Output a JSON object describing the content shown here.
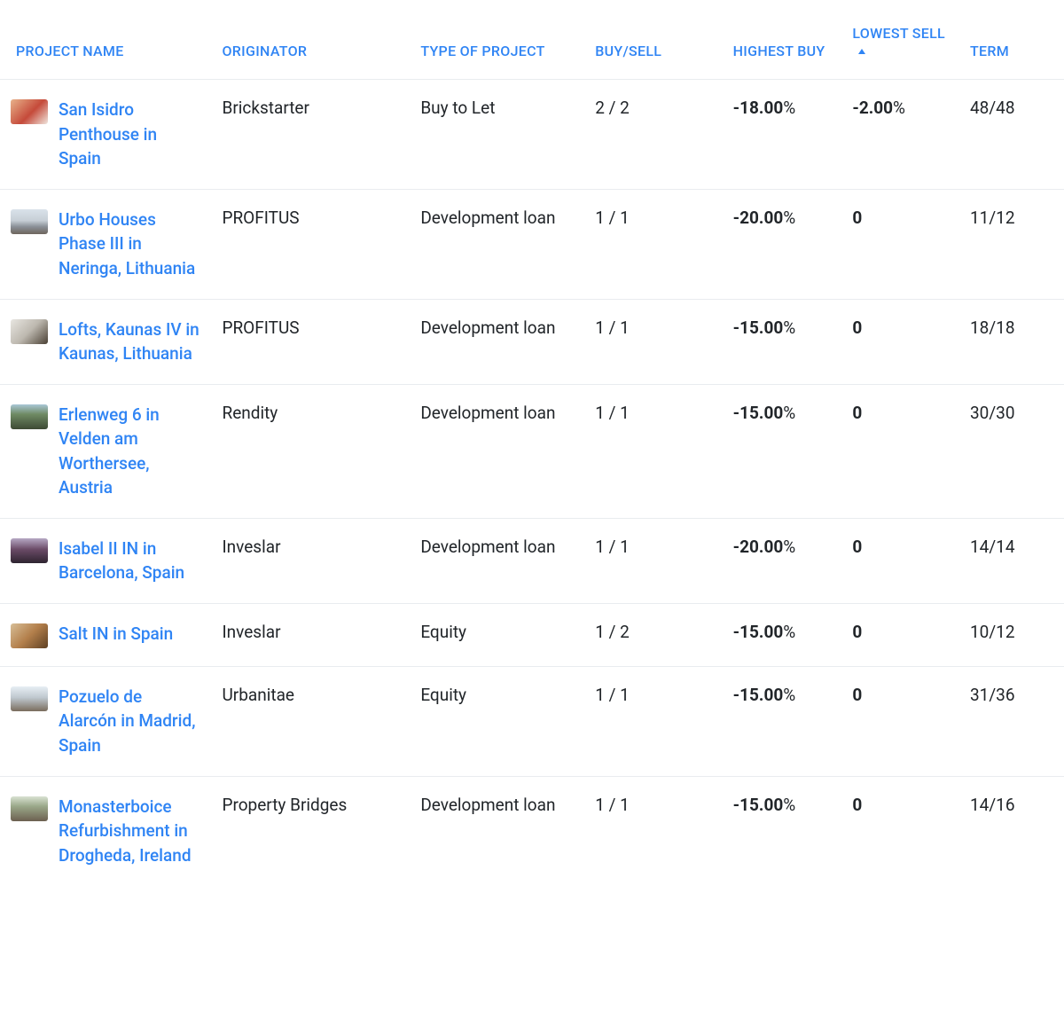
{
  "colors": {
    "link": "#2f84f4",
    "text": "#212529",
    "border": "#e9ecef",
    "background": "#ffffff"
  },
  "columns": {
    "project": "PROJECT NAME",
    "originator": "ORIGINATOR",
    "type": "TYPE OF PROJECT",
    "buysell": "BUY/SELL",
    "highest_buy": "HIGHEST BUY",
    "lowest_sell": "LOWEST SELL",
    "term": "TERM"
  },
  "sort": {
    "column": "lowest_sell",
    "direction": "asc"
  },
  "rows": [
    {
      "name": "San Isidro Penthouse in Spain",
      "originator": "Brickstarter",
      "type": "Buy to Let",
      "buysell": "2 / 2",
      "highest_buy_value": "-18.00",
      "highest_buy_suffix": "%",
      "lowest_sell_value": "-2.00",
      "lowest_sell_suffix": "%",
      "term": "48/48",
      "thumb_gradient": "linear-gradient(135deg,#e8b28a 0%,#c54a3a 55%,#f0e6de 100%)"
    },
    {
      "name": "Urbo Houses Phase III in Neringa, Lithuania",
      "originator": "PROFITUS",
      "type": "Development loan",
      "buysell": "1 / 1",
      "highest_buy_value": "-20.00",
      "highest_buy_suffix": "%",
      "lowest_sell_value": "0",
      "lowest_sell_suffix": "",
      "term": "11/12",
      "thumb_gradient": "linear-gradient(180deg,#d9e2ea 0%,#c7cfd6 45%,#8a9097 70%,#6e655c 100%)"
    },
    {
      "name": "Lofts, Kaunas IV in Kaunas, Lithuania",
      "originator": "PROFITUS",
      "type": "Development loan",
      "buysell": "1 / 1",
      "highest_buy_value": "-15.00",
      "highest_buy_suffix": "%",
      "lowest_sell_value": "0",
      "lowest_sell_suffix": "",
      "term": "18/18",
      "thumb_gradient": "linear-gradient(135deg,#e8e6e1 0%,#bdb8af 50%,#4a4034 100%)"
    },
    {
      "name": "Erlenweg 6 in Velden am Worthersee, Austria",
      "originator": "Rendity",
      "type": "Development loan",
      "buysell": "1 / 1",
      "highest_buy_value": "-15.00",
      "highest_buy_suffix": "%",
      "lowest_sell_value": "0",
      "lowest_sell_suffix": "",
      "term": "30/30",
      "thumb_gradient": "linear-gradient(180deg,#a9c7d6 0%,#6f8a63 40%,#3d4a34 100%)"
    },
    {
      "name": "Isabel II IN in Barcelona, Spain",
      "originator": "Inveslar",
      "type": "Development loan",
      "buysell": "1 / 1",
      "highest_buy_value": "-20.00",
      "highest_buy_suffix": "%",
      "lowest_sell_value": "0",
      "lowest_sell_suffix": "",
      "term": "14/14",
      "thumb_gradient": "linear-gradient(180deg,#b6a8c4 0%,#6a4a66 45%,#2e2430 100%)"
    },
    {
      "name": "Salt IN in Spain",
      "originator": "Inveslar",
      "type": "Equity",
      "buysell": "1 / 2",
      "highest_buy_value": "-15.00",
      "highest_buy_suffix": "%",
      "lowest_sell_value": "0",
      "lowest_sell_suffix": "",
      "term": "10/12",
      "thumb_gradient": "linear-gradient(135deg,#d7be97 0%,#b37f4b 50%,#5e4022 100%)"
    },
    {
      "name": "Pozuelo de Alarcón in Madrid, Spain",
      "originator": "Urbanitae",
      "type": "Equity",
      "buysell": "1 / 1",
      "highest_buy_value": "-15.00",
      "highest_buy_suffix": "%",
      "lowest_sell_value": "0",
      "lowest_sell_suffix": "",
      "term": "31/36",
      "thumb_gradient": "linear-gradient(180deg,#e7eef4 0%,#bfc8cf 45%,#7a6c5d 100%)"
    },
    {
      "name": "Monasterboice Refurbishment in Drogheda, Ireland",
      "originator": "Property Bridges",
      "type": "Development loan",
      "buysell": "1 / 1",
      "highest_buy_value": "-15.00",
      "highest_buy_suffix": "%",
      "lowest_sell_value": "0",
      "lowest_sell_suffix": "",
      "term": "14/16",
      "thumb_gradient": "linear-gradient(180deg,#d9e2d2 0%,#9aa889 40%,#6c6050 100%)"
    }
  ]
}
